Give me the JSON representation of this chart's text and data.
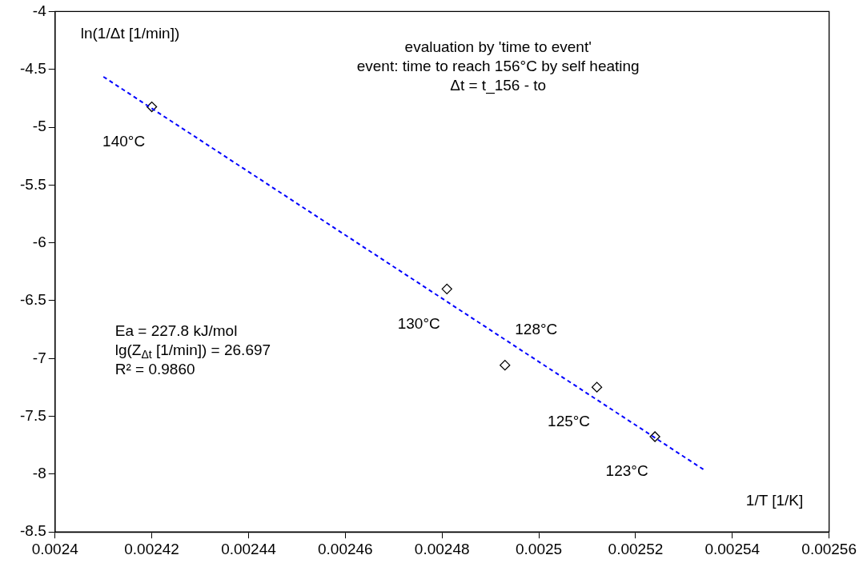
{
  "chart_data": {
    "type": "scatter",
    "title": "evaluation by 'time to event'",
    "subtitle": "event: time to reach 156°C by self heating\nΔt = t_156 - to",
    "xlabel": "1/T [1/K]",
    "ylabel": "ln(1/Δt [1/min])",
    "xlim": [
      0.0024,
      0.00256
    ],
    "xticks": [
      0.0024,
      0.00242,
      0.00244,
      0.00246,
      0.00248,
      0.0025,
      0.00252,
      0.00254,
      0.00256
    ],
    "ylim": [
      -8.5,
      -4
    ],
    "yticks": [
      -8.5,
      -8,
      -7.5,
      -7,
      -6.5,
      -6,
      -5.5,
      -5,
      -4.5,
      -4
    ],
    "grid": false,
    "legend": false,
    "marker": "diamond",
    "series": [
      {
        "type": "scatter",
        "color": "#000000",
        "x": [
          0.00242,
          0.002481,
          0.002493,
          0.002512,
          0.002524
        ],
        "values": [
          -4.824,
          -6.399,
          -7.058,
          -7.248,
          -7.676
        ]
      },
      {
        "type": "line",
        "color": "#0000ff",
        "line_style": "dashed",
        "marker": "none",
        "x": [
          0.00241,
          0.002534
        ],
        "values": [
          -4.564,
          -7.959
        ]
      }
    ],
    "annotations": [
      {
        "text": "140°C",
        "x": 0.00242,
        "y": -4.824
      },
      {
        "text": "130°C",
        "x": 0.002481,
        "y": -6.399
      },
      {
        "text": "128°C",
        "x": 0.002493,
        "y": -7.058
      },
      {
        "text": "125°C",
        "x": 0.002512,
        "y": -7.248
      },
      {
        "text": "123°C",
        "x": 0.002524,
        "y": -7.676
      },
      "Ea = 227.8 kJ/mol",
      "lg(Z$_{Δt}$ [1/min]) = 26.697",
      "R² = 0.9860"
    ]
  }
}
